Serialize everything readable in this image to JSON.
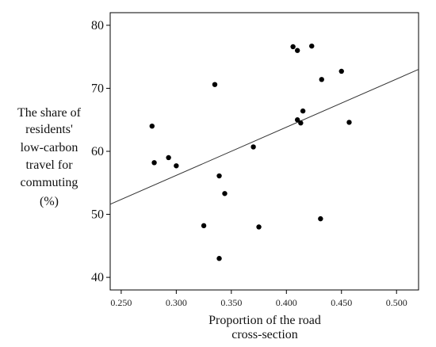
{
  "chart_data": {
    "type": "scatter",
    "title": "",
    "xlabel": [
      "Proportion of the road",
      "cross-section"
    ],
    "ylabel": [
      "The share of",
      "residents'",
      "low-carbon",
      "travel for",
      "commuting",
      "(%)"
    ],
    "x_ticks": [
      "0.250",
      "0.300",
      "0.350",
      "0.400",
      "0.450",
      "0.500"
    ],
    "x_tick_values": [
      0.25,
      0.3,
      0.35,
      0.4,
      0.45,
      0.5
    ],
    "y_ticks": [
      "40",
      "50",
      "60",
      "70",
      "80"
    ],
    "y_tick_values": [
      40,
      50,
      60,
      70,
      80
    ],
    "xlim": [
      0.24,
      0.52
    ],
    "ylim": [
      38,
      82
    ],
    "grid": false,
    "legend": "none",
    "point_color": "#000000",
    "line_color": "#333333",
    "points": [
      {
        "x": 0.278,
        "y": 64.0
      },
      {
        "x": 0.28,
        "y": 58.2
      },
      {
        "x": 0.293,
        "y": 59.0
      },
      {
        "x": 0.3,
        "y": 57.7
      },
      {
        "x": 0.325,
        "y": 48.2
      },
      {
        "x": 0.335,
        "y": 70.6
      },
      {
        "x": 0.339,
        "y": 56.1
      },
      {
        "x": 0.339,
        "y": 43.0
      },
      {
        "x": 0.344,
        "y": 53.3
      },
      {
        "x": 0.37,
        "y": 60.7
      },
      {
        "x": 0.375,
        "y": 48.0
      },
      {
        "x": 0.406,
        "y": 76.6
      },
      {
        "x": 0.41,
        "y": 76.0
      },
      {
        "x": 0.41,
        "y": 65.0
      },
      {
        "x": 0.413,
        "y": 64.5
      },
      {
        "x": 0.415,
        "y": 66.4
      },
      {
        "x": 0.423,
        "y": 76.7
      },
      {
        "x": 0.431,
        "y": 49.3
      },
      {
        "x": 0.432,
        "y": 71.4
      },
      {
        "x": 0.45,
        "y": 72.7
      },
      {
        "x": 0.457,
        "y": 64.6
      }
    ],
    "fit_line": {
      "x": [
        0.24,
        0.52
      ],
      "y": [
        51.6,
        73.0
      ]
    }
  }
}
